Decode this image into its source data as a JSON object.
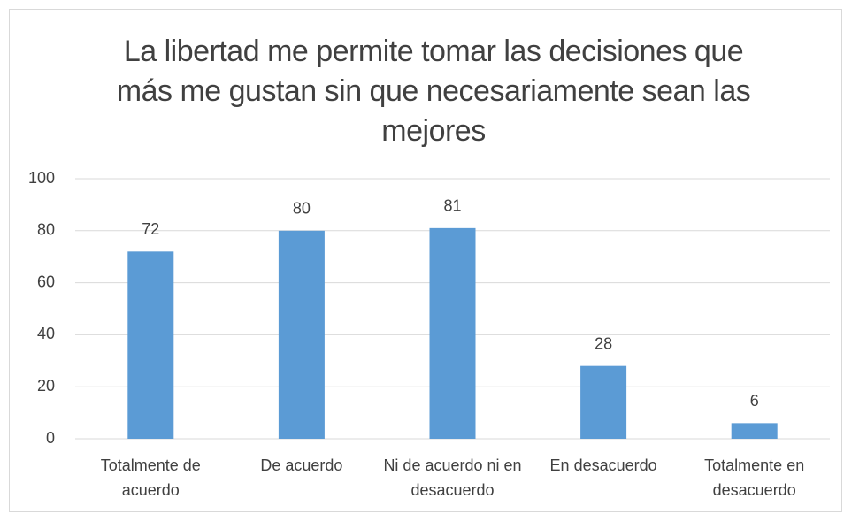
{
  "chart_data": {
    "type": "bar",
    "title": "La libertad me permite tomar las decisiones que más me gustan sin que necesariamente sean las mejores",
    "categories": [
      "Totalmente de acuerdo",
      "De acuerdo",
      "Ni de acuerdo ni en desacuerdo",
      "En desacuerdo",
      "Totalmente en desacuerdo"
    ],
    "values": [
      72,
      80,
      81,
      28,
      6
    ],
    "color": "#5b9bd5",
    "ylim": [
      0,
      100
    ],
    "yticks": [
      0,
      20,
      40,
      60,
      80,
      100
    ],
    "grid": true
  }
}
